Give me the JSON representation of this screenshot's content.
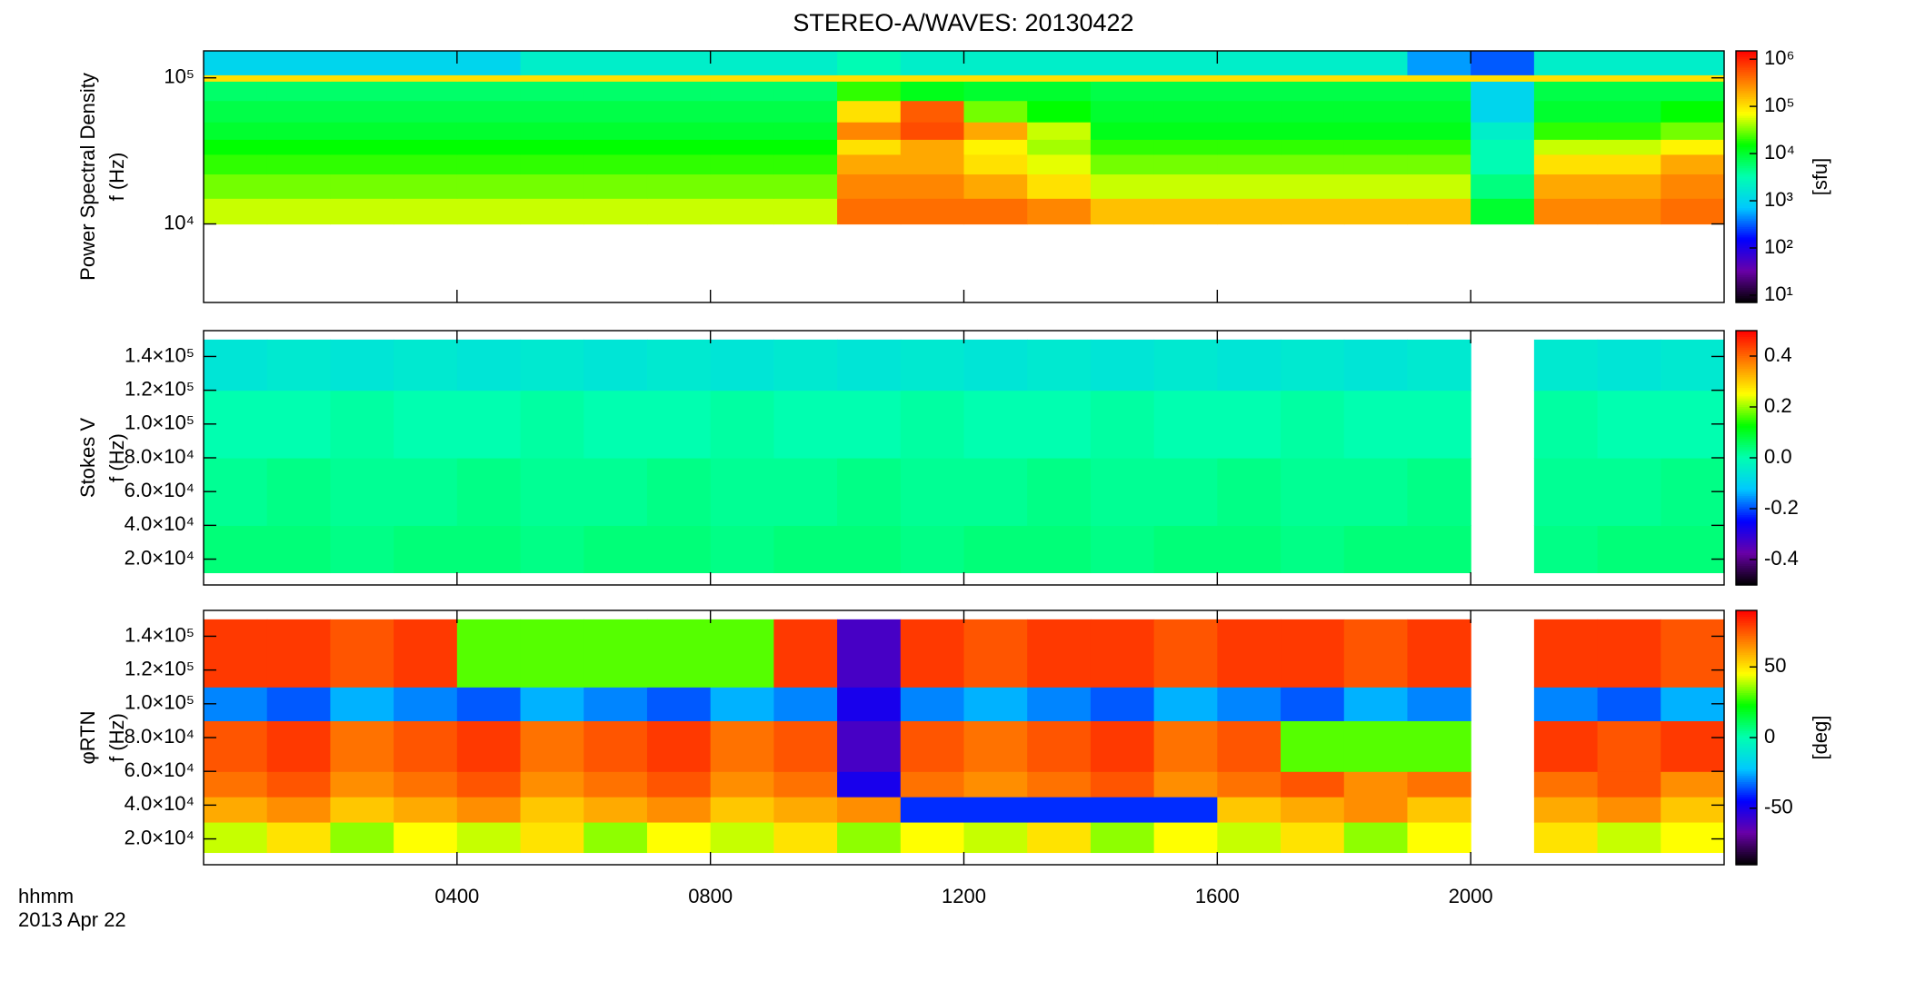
{
  "title": "STEREO-A/WAVES: 20130422",
  "colormap": [
    "#000000",
    "#6a00a8",
    "#0000ff",
    "#00c8ff",
    "#00ffb0",
    "#00ff00",
    "#ffff00",
    "#ff8000",
    "#ff0000"
  ],
  "chart_data": [
    {
      "type": "heatmap",
      "ylabel": [
        "Power Spectral Density",
        "f (Hz)"
      ],
      "ylog": true,
      "xlim": [
        0,
        24
      ],
      "xticks": [
        4,
        8,
        12,
        16,
        20
      ],
      "ylim": [
        2900,
        153000
      ],
      "yticks": [
        {
          "value": 10000,
          "label": "10⁴"
        },
        {
          "value": 100000,
          "label": "10⁵"
        }
      ],
      "xbins": [
        0,
        1,
        2,
        3,
        4,
        5,
        6,
        7,
        8,
        9,
        10,
        11,
        12,
        13,
        14,
        15,
        16,
        17,
        18,
        19,
        20,
        21,
        22,
        23,
        24
      ],
      "ybins": [
        10000,
        15000,
        22000,
        30000,
        38000,
        50000,
        70000,
        95000,
        105000,
        153000
      ],
      "z": [
        [
          50000,
          50000,
          50000,
          50000,
          50000,
          50000,
          50000,
          50000,
          50000,
          50000,
          400000,
          400000,
          400000,
          300000,
          150000,
          150000,
          150000,
          150000,
          150000,
          150000,
          10000,
          300000,
          300000,
          400000
        ],
        [
          30000,
          30000,
          30000,
          30000,
          30000,
          30000,
          30000,
          30000,
          30000,
          30000,
          300000,
          300000,
          200000,
          100000,
          50000,
          50000,
          50000,
          50000,
          50000,
          50000,
          5000,
          200000,
          200000,
          300000
        ],
        [
          20000,
          20000,
          20000,
          20000,
          20000,
          20000,
          20000,
          20000,
          20000,
          20000,
          200000,
          200000,
          100000,
          60000,
          30000,
          30000,
          30000,
          30000,
          30000,
          30000,
          3000,
          100000,
          100000,
          200000
        ],
        [
          15000,
          15000,
          15000,
          15000,
          15000,
          15000,
          15000,
          15000,
          15000,
          15000,
          100000,
          200000,
          80000,
          40000,
          20000,
          20000,
          20000,
          20000,
          20000,
          20000,
          3000,
          50000,
          50000,
          80000
        ],
        [
          10000,
          10000,
          10000,
          10000,
          10000,
          10000,
          10000,
          10000,
          10000,
          10000,
          300000,
          600000,
          200000,
          50000,
          12000,
          12000,
          12000,
          12000,
          12000,
          12000,
          2000,
          20000,
          20000,
          30000
        ],
        [
          8000,
          8000,
          8000,
          8000,
          8000,
          8000,
          8000,
          8000,
          8000,
          8000,
          100000,
          500000,
          30000,
          15000,
          10000,
          10000,
          10000,
          10000,
          10000,
          10000,
          1000,
          10000,
          10000,
          15000
        ],
        [
          6000,
          6000,
          6000,
          6000,
          6000,
          6000,
          6000,
          6000,
          6000,
          6000,
          20000,
          12000,
          10000,
          10000,
          8000,
          8000,
          8000,
          8000,
          8000,
          8000,
          1000,
          8000,
          8000,
          8000
        ],
        [
          100000,
          100000,
          100000,
          100000,
          100000,
          100000,
          100000,
          100000,
          100000,
          100000,
          100000,
          100000,
          100000,
          100000,
          100000,
          100000,
          100000,
          100000,
          100000,
          100000,
          100000,
          100000,
          100000,
          100000
        ],
        [
          1000,
          1000,
          1000,
          1000,
          1000,
          2000,
          2000,
          2000,
          2000,
          2000,
          3000,
          2000,
          2000,
          2000,
          2000,
          2000,
          2000,
          2000,
          2000,
          500,
          300,
          2000,
          2000,
          2000
        ]
      ],
      "clog": true,
      "clim": [
        7,
        1500000
      ],
      "cticks": [
        {
          "value": 10,
          "label": "10¹"
        },
        {
          "value": 100,
          "label": "10²"
        },
        {
          "value": 1000,
          "label": "10³"
        },
        {
          "value": 10000,
          "label": "10⁴"
        },
        {
          "value": 100000,
          "label": "10⁵"
        },
        {
          "value": 1000000,
          "label": "10⁶"
        }
      ],
      "clabel": "[sfu]"
    },
    {
      "type": "heatmap",
      "ylabel": [
        "Stokes V",
        "f (Hz)"
      ],
      "ylog": false,
      "xlim": [
        0,
        24
      ],
      "xticks": [
        4,
        8,
        12,
        16,
        20
      ],
      "ylim": [
        4700,
        155300
      ],
      "yticks": [
        {
          "value": 20000,
          "label": "2.0×10⁴"
        },
        {
          "value": 40000,
          "label": "4.0×10⁴"
        },
        {
          "value": 60000,
          "label": "6.0×10⁴"
        },
        {
          "value": 80000,
          "label": "8.0×10⁴"
        },
        {
          "value": 100000,
          "label": "1.0×10⁵"
        },
        {
          "value": 120000,
          "label": "1.2×10⁵"
        },
        {
          "value": 140000,
          "label": "1.4×10⁵"
        }
      ],
      "xbins": [
        0,
        1,
        2,
        3,
        4,
        5,
        6,
        7,
        8,
        9,
        10,
        11,
        12,
        13,
        14,
        15,
        16,
        17,
        18,
        19,
        20,
        21,
        22,
        23,
        24
      ],
      "ybins": [
        12000,
        40000,
        80000,
        120000,
        150000
      ],
      "z": [
        [
          0.04,
          0.04,
          0.03,
          0.04,
          0.04,
          0.03,
          0.04,
          0.04,
          0.03,
          0.04,
          0.04,
          0.03,
          0.04,
          0.04,
          0.03,
          0.04,
          0.04,
          0.03,
          0.04,
          0.04,
          null,
          0.03,
          0.04,
          0.04
        ],
        [
          0.02,
          0.03,
          0.02,
          0.02,
          0.03,
          0.02,
          0.02,
          0.03,
          0.02,
          0.02,
          0.03,
          0.02,
          0.02,
          0.03,
          0.02,
          0.02,
          0.03,
          0.02,
          0.02,
          0.03,
          null,
          0.02,
          0.02,
          0.03
        ],
        [
          0.0,
          0.0,
          0.01,
          0.0,
          0.0,
          0.01,
          0.0,
          0.0,
          0.01,
          0.0,
          0.0,
          0.01,
          0.0,
          0.0,
          0.01,
          0.0,
          0.0,
          0.01,
          0.0,
          0.0,
          null,
          0.01,
          0.0,
          0.0
        ],
        [
          -0.06,
          -0.05,
          -0.06,
          -0.05,
          -0.06,
          -0.05,
          -0.06,
          -0.05,
          -0.06,
          -0.05,
          -0.06,
          -0.05,
          -0.06,
          -0.05,
          -0.06,
          -0.05,
          -0.06,
          -0.05,
          -0.06,
          -0.05,
          null,
          -0.05,
          -0.06,
          -0.05
        ]
      ],
      "clog": false,
      "clim": [
        -0.5,
        0.5
      ],
      "cticks": [
        -0.4,
        -0.2,
        {
          "value": 0,
          "label": "0.0"
        },
        0.2,
        0.4
      ]
    },
    {
      "type": "heatmap",
      "ylabel": [
        "φRTN",
        "f (Hz)"
      ],
      "ylog": false,
      "xlim": [
        0,
        24
      ],
      "xticks": [
        {
          "value": 4,
          "label": "0400"
        },
        {
          "value": 8,
          "label": "0800"
        },
        {
          "value": 12,
          "label": "1200"
        },
        {
          "value": 16,
          "label": "1600"
        },
        {
          "value": 20,
          "label": "2000"
        }
      ],
      "xlabel": "hhmm",
      "date": "2013 Apr 22",
      "ylim": [
        4700,
        155300
      ],
      "yticks": [
        {
          "value": 20000,
          "label": "2.0×10⁴"
        },
        {
          "value": 40000,
          "label": "4.0×10⁴"
        },
        {
          "value": 60000,
          "label": "6.0×10⁴"
        },
        {
          "value": 80000,
          "label": "8.0×10⁴"
        },
        {
          "value": 100000,
          "label": "1.0×10⁵"
        },
        {
          "value": 120000,
          "label": "1.2×10⁵"
        },
        {
          "value": 140000,
          "label": "1.4×10⁵"
        }
      ],
      "xbins": [
        0,
        1,
        2,
        3,
        4,
        5,
        6,
        7,
        8,
        9,
        10,
        11,
        12,
        13,
        14,
        15,
        16,
        17,
        18,
        19,
        20,
        21,
        22,
        23,
        24
      ],
      "ybins": [
        12000,
        30000,
        45000,
        60000,
        90000,
        110000,
        150000
      ],
      "z": [
        [
          40,
          50,
          35,
          45,
          40,
          50,
          35,
          45,
          40,
          50,
          35,
          45,
          40,
          50,
          35,
          45,
          40,
          50,
          35,
          45,
          null,
          50,
          40,
          45
        ],
        [
          60,
          65,
          55,
          60,
          65,
          55,
          60,
          65,
          55,
          60,
          65,
          -40,
          -40,
          -40,
          -40,
          -40,
          55,
          60,
          65,
          55,
          null,
          60,
          65,
          55
        ],
        [
          70,
          75,
          65,
          70,
          75,
          65,
          70,
          75,
          65,
          70,
          -50,
          70,
          65,
          70,
          75,
          65,
          70,
          75,
          65,
          70,
          null,
          70,
          75,
          65
        ],
        [
          75,
          80,
          70,
          75,
          80,
          70,
          75,
          80,
          70,
          75,
          -60,
          75,
          70,
          75,
          80,
          70,
          75,
          30,
          30,
          30,
          null,
          80,
          75,
          80
        ],
        [
          -30,
          -35,
          -25,
          -30,
          -35,
          -25,
          -30,
          -35,
          -25,
          -30,
          -50,
          -30,
          -25,
          -30,
          -35,
          -25,
          -30,
          -35,
          -25,
          -30,
          null,
          -30,
          -35,
          -25
        ],
        [
          80,
          80,
          75,
          80,
          30,
          30,
          30,
          30,
          30,
          80,
          -60,
          80,
          75,
          80,
          80,
          75,
          80,
          80,
          75,
          80,
          null,
          80,
          80,
          75
        ]
      ],
      "clog": false,
      "clim": [
        -90,
        90
      ],
      "cticks": [
        -50,
        0,
        50
      ],
      "clabel": "[deg]"
    }
  ]
}
